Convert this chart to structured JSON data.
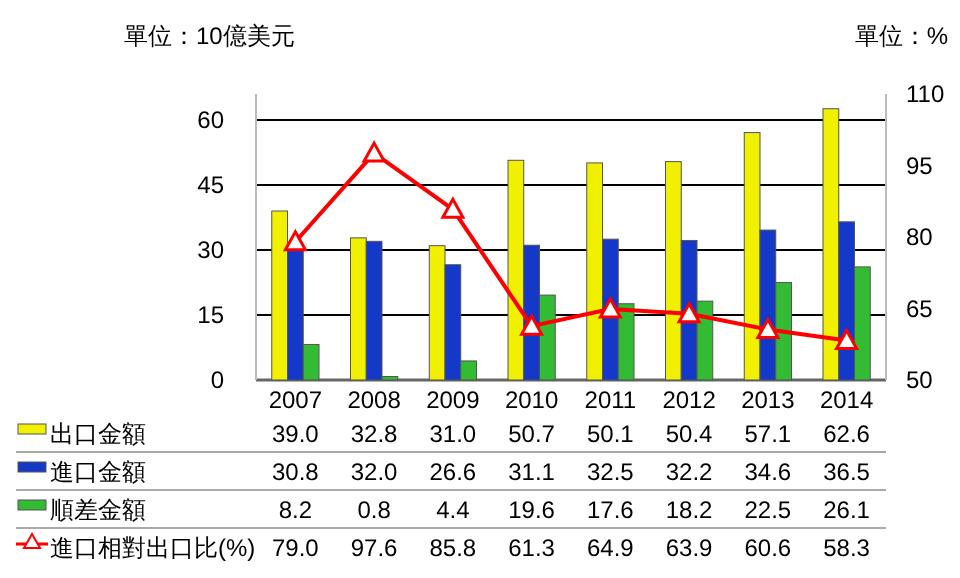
{
  "chart_data": {
    "type": "bar",
    "categories": [
      "2007",
      "2008",
      "2009",
      "2010",
      "2011",
      "2012",
      "2013",
      "2014"
    ],
    "series": [
      {
        "name": "出口金額",
        "color": "#f0f000",
        "values": [
          39.0,
          32.8,
          31.0,
          50.7,
          50.1,
          50.4,
          57.1,
          62.6
        ],
        "value_labels": [
          "39.0",
          "32.8",
          "31.0",
          "50.7",
          "50.1",
          "50.4",
          "57.1",
          "62.6"
        ]
      },
      {
        "name": "進口金額",
        "color": "#1438c8",
        "values": [
          30.8,
          32.0,
          26.6,
          31.1,
          32.5,
          32.2,
          34.6,
          36.5
        ],
        "value_labels": [
          "30.8",
          "32.0",
          "26.6",
          "31.1",
          "32.5",
          "32.2",
          "34.6",
          "36.5"
        ]
      },
      {
        "name": "順差金額",
        "color": "#33bb33",
        "values": [
          8.2,
          0.8,
          4.4,
          19.6,
          17.6,
          18.2,
          22.5,
          26.1
        ],
        "value_labels": [
          "8.2",
          "0.8",
          "4.4",
          "19.6",
          "17.6",
          "18.2",
          "22.5",
          "26.1"
        ]
      },
      {
        "name": "進口相對出口比(%)",
        "type": "line",
        "axis": "y2",
        "color": "#ff0000",
        "marker": "triangle",
        "values": [
          79.0,
          97.6,
          85.8,
          61.3,
          64.9,
          63.9,
          60.6,
          58.3
        ],
        "value_labels": [
          "79.0",
          "97.6",
          "85.8",
          "61.3",
          "64.9",
          "63.9",
          "60.6",
          "58.3"
        ]
      }
    ],
    "ylabel": "單位：10億美元",
    "y2label": "單位：%",
    "ylim": [
      0,
      66
    ],
    "yticks": [
      0,
      15,
      30,
      45,
      60
    ],
    "y2lim": [
      50,
      110
    ],
    "y2ticks": [
      50,
      65,
      80,
      95,
      110
    ],
    "grid": "y",
    "legend": "bottom"
  }
}
